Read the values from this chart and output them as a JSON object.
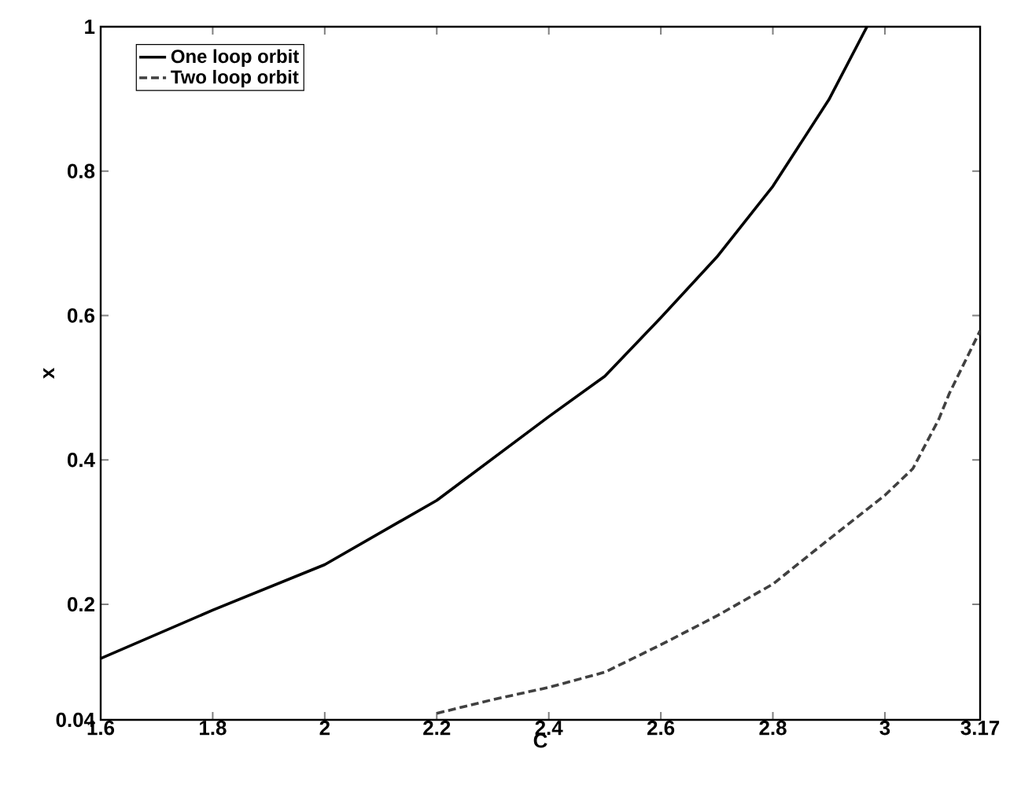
{
  "chart_data": {
    "type": "line",
    "xlabel": "C",
    "ylabel": "x",
    "xlim": [
      1.6,
      3.17
    ],
    "ylim": [
      0.04,
      1
    ],
    "xticks": [
      1.6,
      1.8,
      2,
      2.2,
      2.4,
      2.6,
      2.8,
      3,
      3.17
    ],
    "yticks": [
      0.04,
      0.2,
      0.4,
      0.6,
      0.8,
      1
    ],
    "legend": "top left",
    "grid": false,
    "marker": "none",
    "series": [
      {
        "name": "One loop orbit",
        "color": "#000000",
        "line_style": "solid",
        "x": [
          1.6,
          1.8,
          2.0,
          2.2,
          2.4,
          2.5,
          2.6,
          2.7,
          2.8,
          2.9,
          2.968
        ],
        "values": [
          0.125,
          0.192,
          0.255,
          0.344,
          0.46,
          0.516,
          0.597,
          0.681,
          0.779,
          0.899,
          1.0
        ]
      },
      {
        "name": "Two loop orbit",
        "color": "#404040",
        "line_style": "dashed",
        "x": [
          2.2,
          2.3,
          2.4,
          2.5,
          2.6,
          2.7,
          2.8,
          2.9,
          3.0,
          3.05,
          3.096,
          3.115,
          3.17
        ],
        "values": [
          0.049,
          0.068,
          0.085,
          0.106,
          0.144,
          0.184,
          0.228,
          0.29,
          0.351,
          0.388,
          0.456,
          0.492,
          0.579
        ]
      }
    ]
  }
}
